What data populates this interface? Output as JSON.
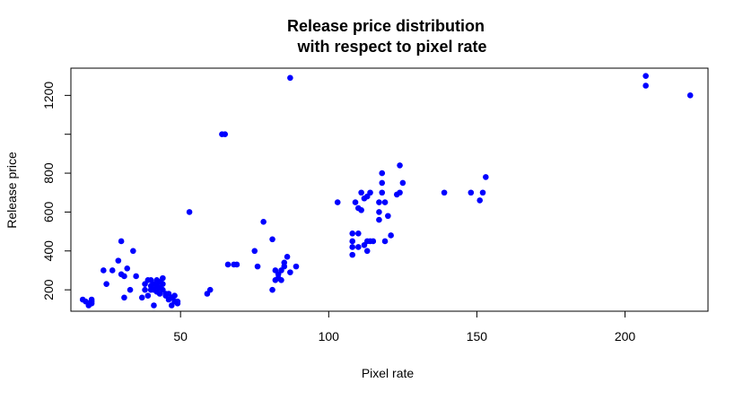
{
  "chart_data": {
    "type": "scatter",
    "title": [
      "Release price distribution",
      "with respect to pixel rate"
    ],
    "xlabel": "Pixel rate",
    "ylabel": "Release price",
    "xlim": [
      13,
      228
    ],
    "ylim": [
      90,
      1340
    ],
    "x_ticks": [
      50,
      100,
      150,
      200
    ],
    "y_ticks": [
      200,
      400,
      600,
      800,
      1000,
      1200
    ],
    "y_tick_labels": [
      "200",
      "400",
      "600",
      "800",
      "",
      "1200"
    ],
    "grid": false,
    "legend": "none",
    "point_color": "#0000ff",
    "points": [
      {
        "x": 17,
        "y": 150
      },
      {
        "x": 18,
        "y": 140
      },
      {
        "x": 19,
        "y": 130
      },
      {
        "x": 19,
        "y": 120
      },
      {
        "x": 20,
        "y": 150
      },
      {
        "x": 20,
        "y": 140
      },
      {
        "x": 20,
        "y": 130
      },
      {
        "x": 24,
        "y": 300
      },
      {
        "x": 25,
        "y": 230
      },
      {
        "x": 27,
        "y": 300
      },
      {
        "x": 29,
        "y": 350
      },
      {
        "x": 30,
        "y": 450
      },
      {
        "x": 30,
        "y": 280
      },
      {
        "x": 31,
        "y": 160
      },
      {
        "x": 31,
        "y": 270
      },
      {
        "x": 32,
        "y": 310
      },
      {
        "x": 33,
        "y": 200
      },
      {
        "x": 34,
        "y": 400
      },
      {
        "x": 35,
        "y": 270
      },
      {
        "x": 37,
        "y": 160
      },
      {
        "x": 38,
        "y": 200
      },
      {
        "x": 38,
        "y": 230
      },
      {
        "x": 39,
        "y": 170
      },
      {
        "x": 39,
        "y": 250
      },
      {
        "x": 40,
        "y": 200
      },
      {
        "x": 40,
        "y": 220
      },
      {
        "x": 40,
        "y": 250
      },
      {
        "x": 41,
        "y": 200
      },
      {
        "x": 41,
        "y": 230
      },
      {
        "x": 41,
        "y": 120
      },
      {
        "x": 42,
        "y": 190
      },
      {
        "x": 42,
        "y": 220
      },
      {
        "x": 42,
        "y": 250
      },
      {
        "x": 43,
        "y": 180
      },
      {
        "x": 43,
        "y": 210
      },
      {
        "x": 43,
        "y": 240
      },
      {
        "x": 44,
        "y": 200
      },
      {
        "x": 44,
        "y": 230
      },
      {
        "x": 44,
        "y": 260
      },
      {
        "x": 45,
        "y": 170
      },
      {
        "x": 45,
        "y": 180
      },
      {
        "x": 46,
        "y": 150
      },
      {
        "x": 46,
        "y": 180
      },
      {
        "x": 47,
        "y": 120
      },
      {
        "x": 47,
        "y": 160
      },
      {
        "x": 48,
        "y": 140
      },
      {
        "x": 48,
        "y": 170
      },
      {
        "x": 49,
        "y": 130
      },
      {
        "x": 49,
        "y": 140
      },
      {
        "x": 53,
        "y": 600
      },
      {
        "x": 59,
        "y": 180
      },
      {
        "x": 60,
        "y": 200
      },
      {
        "x": 64,
        "y": 1000
      },
      {
        "x": 65,
        "y": 1000
      },
      {
        "x": 66,
        "y": 330
      },
      {
        "x": 68,
        "y": 330
      },
      {
        "x": 69,
        "y": 330
      },
      {
        "x": 75,
        "y": 400
      },
      {
        "x": 76,
        "y": 320
      },
      {
        "x": 78,
        "y": 550
      },
      {
        "x": 81,
        "y": 200
      },
      {
        "x": 81,
        "y": 460
      },
      {
        "x": 82,
        "y": 250
      },
      {
        "x": 82,
        "y": 300
      },
      {
        "x": 83,
        "y": 260
      },
      {
        "x": 83,
        "y": 280
      },
      {
        "x": 84,
        "y": 250
      },
      {
        "x": 84,
        "y": 300
      },
      {
        "x": 85,
        "y": 320
      },
      {
        "x": 85,
        "y": 340
      },
      {
        "x": 86,
        "y": 370
      },
      {
        "x": 87,
        "y": 290
      },
      {
        "x": 87,
        "y": 1290
      },
      {
        "x": 89,
        "y": 320
      },
      {
        "x": 103,
        "y": 650
      },
      {
        "x": 108,
        "y": 380
      },
      {
        "x": 108,
        "y": 420
      },
      {
        "x": 108,
        "y": 450
      },
      {
        "x": 108,
        "y": 490
      },
      {
        "x": 109,
        "y": 650
      },
      {
        "x": 110,
        "y": 420
      },
      {
        "x": 110,
        "y": 490
      },
      {
        "x": 110,
        "y": 620
      },
      {
        "x": 111,
        "y": 610
      },
      {
        "x": 111,
        "y": 700
      },
      {
        "x": 112,
        "y": 430
      },
      {
        "x": 112,
        "y": 670
      },
      {
        "x": 113,
        "y": 400
      },
      {
        "x": 113,
        "y": 450
      },
      {
        "x": 113,
        "y": 680
      },
      {
        "x": 114,
        "y": 450
      },
      {
        "x": 114,
        "y": 700
      },
      {
        "x": 115,
        "y": 450
      },
      {
        "x": 117,
        "y": 560
      },
      {
        "x": 117,
        "y": 600
      },
      {
        "x": 117,
        "y": 650
      },
      {
        "x": 118,
        "y": 700
      },
      {
        "x": 118,
        "y": 750
      },
      {
        "x": 118,
        "y": 800
      },
      {
        "x": 119,
        "y": 450
      },
      {
        "x": 119,
        "y": 650
      },
      {
        "x": 120,
        "y": 580
      },
      {
        "x": 121,
        "y": 480
      },
      {
        "x": 123,
        "y": 690
      },
      {
        "x": 124,
        "y": 700
      },
      {
        "x": 124,
        "y": 840
      },
      {
        "x": 125,
        "y": 750
      },
      {
        "x": 139,
        "y": 700
      },
      {
        "x": 148,
        "y": 700
      },
      {
        "x": 151,
        "y": 660
      },
      {
        "x": 152,
        "y": 700
      },
      {
        "x": 153,
        "y": 780
      },
      {
        "x": 207,
        "y": 1250
      },
      {
        "x": 207,
        "y": 1300
      },
      {
        "x": 222,
        "y": 1200
      }
    ]
  }
}
